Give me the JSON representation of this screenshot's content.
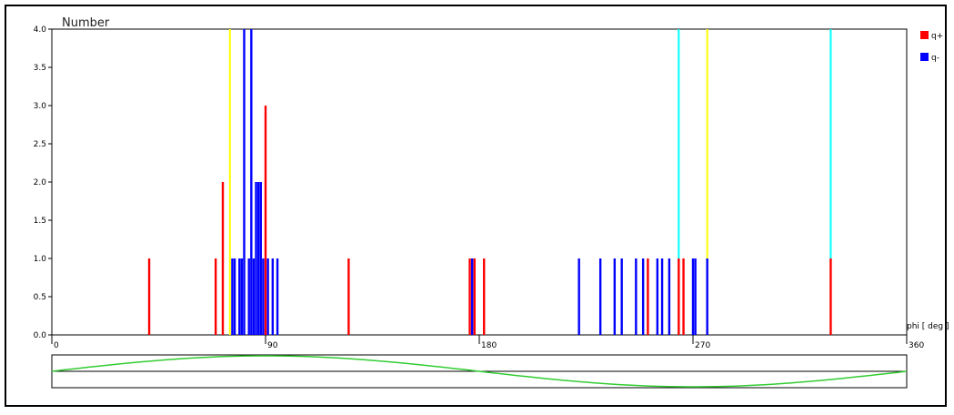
{
  "chart_data": {
    "type": "histogram",
    "title": "Number",
    "xlabel": "phi [ deg ]",
    "xlim": [
      0,
      360
    ],
    "ylim": [
      0,
      4.0
    ],
    "x_ticks": [
      "0",
      "90",
      "180",
      "270",
      "360"
    ],
    "y_ticks": [
      "0.0",
      "0.5",
      "1.0",
      "1.5",
      "2.0",
      "2.5",
      "3.0",
      "3.5",
      "4.0"
    ],
    "legend_position": "top-right",
    "series": [
      {
        "name": "q+",
        "color": "#ff0000",
        "points": [
          {
            "x": 41,
            "y": 1.0
          },
          {
            "x": 69,
            "y": 1.0
          },
          {
            "x": 72,
            "y": 2.0
          },
          {
            "x": 90,
            "y": 3.0
          },
          {
            "x": 125,
            "y": 1.0
          },
          {
            "x": 176,
            "y": 1.0
          },
          {
            "x": 178,
            "y": 1.0
          },
          {
            "x": 182,
            "y": 1.0
          },
          {
            "x": 251,
            "y": 1.0
          },
          {
            "x": 264,
            "y": 1.0
          },
          {
            "x": 266,
            "y": 1.0
          },
          {
            "x": 328,
            "y": 1.0
          }
        ]
      },
      {
        "name": "q-",
        "color": "#0000ff",
        "points": [
          {
            "x": 76,
            "y": 1.0
          },
          {
            "x": 77,
            "y": 1.0
          },
          {
            "x": 79,
            "y": 1.0
          },
          {
            "x": 80,
            "y": 1.0
          },
          {
            "x": 81,
            "y": 4.0
          },
          {
            "x": 83,
            "y": 1.0
          },
          {
            "x": 84,
            "y": 4.0
          },
          {
            "x": 85,
            "y": 1.0
          },
          {
            "x": 86,
            "y": 2.0
          },
          {
            "x": 87,
            "y": 2.0
          },
          {
            "x": 88,
            "y": 2.0
          },
          {
            "x": 89,
            "y": 1.0
          },
          {
            "x": 91,
            "y": 1.0
          },
          {
            "x": 93,
            "y": 1.0
          },
          {
            "x": 95,
            "y": 1.0
          },
          {
            "x": 177,
            "y": 1.0
          },
          {
            "x": 222,
            "y": 1.0
          },
          {
            "x": 231,
            "y": 1.0
          },
          {
            "x": 237,
            "y": 1.0
          },
          {
            "x": 240,
            "y": 1.0
          },
          {
            "x": 246,
            "y": 1.0
          },
          {
            "x": 249,
            "y": 1.0
          },
          {
            "x": 255,
            "y": 1.0
          },
          {
            "x": 257,
            "y": 1.0
          },
          {
            "x": 260,
            "y": 1.0
          },
          {
            "x": 270,
            "y": 1.0
          },
          {
            "x": 271,
            "y": 1.0
          },
          {
            "x": 276,
            "y": 1.0
          }
        ]
      }
    ],
    "markers": [
      {
        "x": 75,
        "color": "#ffff00"
      },
      {
        "x": 264,
        "color": "#00ffff"
      },
      {
        "x": 276,
        "color": "#ffff00"
      },
      {
        "x": 328,
        "color": "#00ffff"
      }
    ],
    "overview_curve": {
      "color": "#33cc33",
      "amplitude": 1.0,
      "shape": "sine over 0-360"
    }
  }
}
